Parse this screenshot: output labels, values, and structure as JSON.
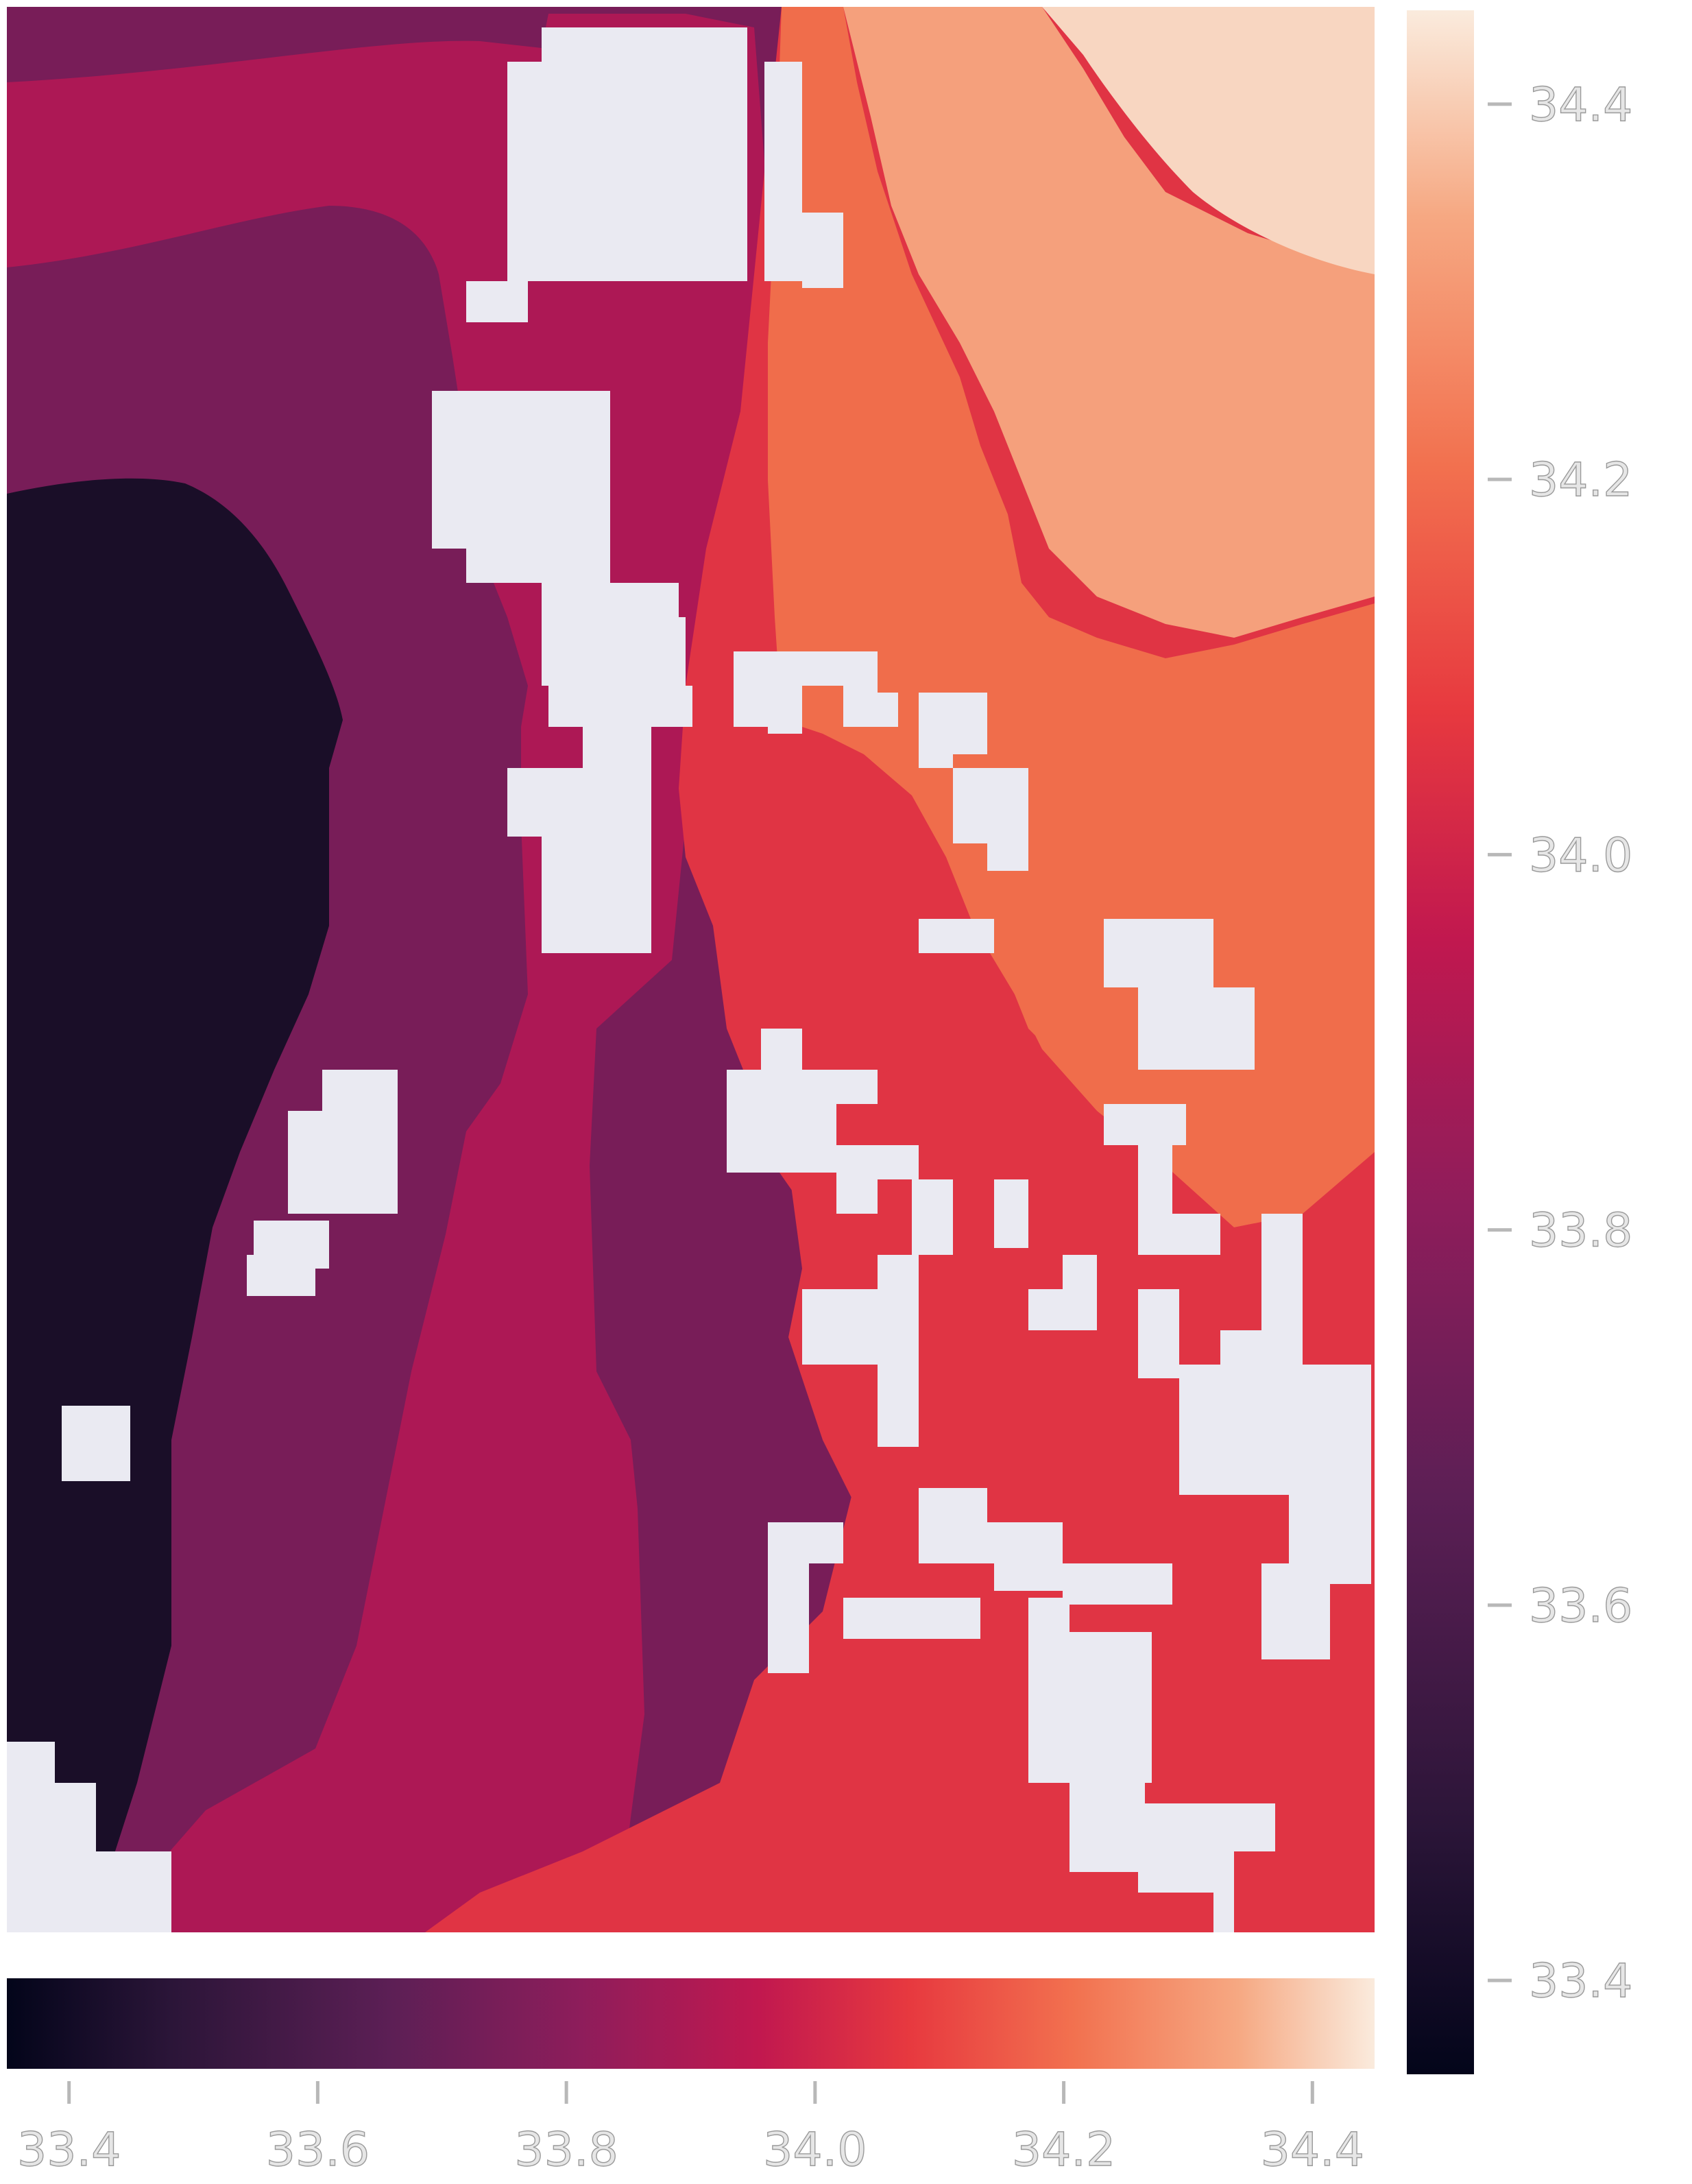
{
  "chart_data": {
    "type": "heatmap",
    "title": "",
    "xlabel": "",
    "ylabel": "",
    "value_range": [
      33.35,
      34.45
    ],
    "colormap": "rocket",
    "masked_color": "#eaeaf2",
    "band_colors": [
      {
        "value": 33.4,
        "color": "#1a0e28"
      },
      {
        "value": 33.6,
        "color": "#431d47"
      },
      {
        "value": 33.75,
        "color": "#781d58"
      },
      {
        "value": 33.9,
        "color": "#ad1855"
      },
      {
        "value": 34.0,
        "color": "#e03444"
      },
      {
        "value": 34.1,
        "color": "#f06d4b"
      },
      {
        "value": 34.25,
        "color": "#f5a07c"
      },
      {
        "value": 34.4,
        "color": "#f8d6c1"
      }
    ],
    "colorbars": [
      {
        "orientation": "vertical",
        "ticks": [
          "33.4",
          "33.6",
          "33.8",
          "34.0",
          "34.2",
          "34.4"
        ]
      },
      {
        "orientation": "horizontal",
        "ticks": [
          "33.4",
          "33.6",
          "33.8",
          "34.0",
          "34.2",
          "34.4"
        ]
      }
    ]
  }
}
